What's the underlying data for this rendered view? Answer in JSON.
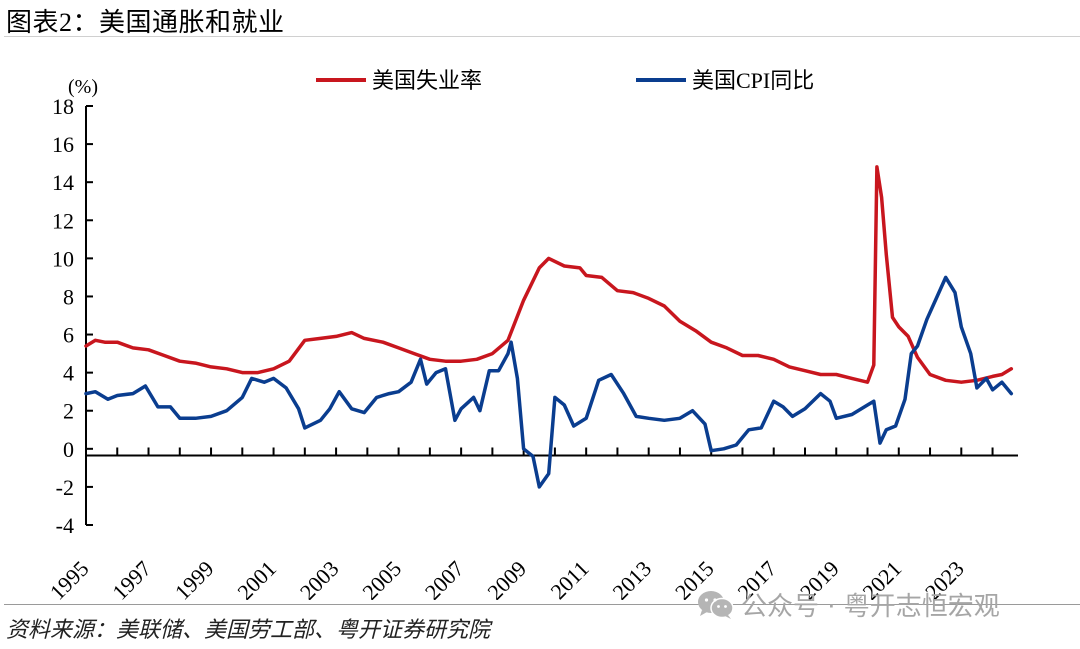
{
  "title": "图表2：美国通胀和就业",
  "source": "资料来源：美联储、美国劳工部、粤开证券研究院",
  "watermark": {
    "icon": "wechat-icon",
    "text": "公众号 · 粤开志恒宏观"
  },
  "colors": {
    "unemployment": "#c8161e",
    "cpi": "#0a3d8f",
    "axis": "#000000"
  },
  "chart_data": {
    "type": "line",
    "title": "美国通胀和就业",
    "ylabel": "(%)",
    "xlabel": "",
    "ylim": [
      -4,
      18
    ],
    "yticks": [
      18,
      16,
      14,
      12,
      10,
      8,
      6,
      4,
      2,
      0,
      -2,
      -4
    ],
    "xlim": [
      1995,
      2024.75
    ],
    "xticks": [
      "1995",
      "1997",
      "1999",
      "2001",
      "2003",
      "2005",
      "2007",
      "2009",
      "2011",
      "2013",
      "2015",
      "2017",
      "2019",
      "2021",
      "2023"
    ],
    "grid": false,
    "legend_position": "top",
    "series": [
      {
        "name": "美国失业率",
        "color": "#c8161e",
        "x": [
          1995.0,
          1995.3,
          1995.6,
          1996.0,
          1996.5,
          1997.0,
          1997.5,
          1998.0,
          1998.5,
          1999.0,
          1999.5,
          2000.0,
          2000.5,
          2001.0,
          2001.5,
          2002.0,
          2002.5,
          2003.0,
          2003.5,
          2003.9,
          2004.5,
          2005.0,
          2005.5,
          2006.0,
          2006.5,
          2007.0,
          2007.5,
          2008.0,
          2008.5,
          2009.0,
          2009.5,
          2009.8,
          2010.3,
          2010.8,
          2011.0,
          2011.5,
          2012.0,
          2012.5,
          2013.0,
          2013.5,
          2014.0,
          2014.5,
          2015.0,
          2015.5,
          2016.0,
          2016.5,
          2017.0,
          2017.5,
          2018.0,
          2018.5,
          2019.0,
          2019.5,
          2020.0,
          2020.2,
          2020.3,
          2020.45,
          2020.6,
          2020.8,
          2021.0,
          2021.3,
          2021.6,
          2022.0,
          2022.5,
          2023.0,
          2023.5,
          2024.0,
          2024.3,
          2024.6
        ],
        "values": [
          5.4,
          5.7,
          5.6,
          5.6,
          5.3,
          5.2,
          4.9,
          4.6,
          4.5,
          4.3,
          4.2,
          4.0,
          4.0,
          4.2,
          4.6,
          5.7,
          5.8,
          5.9,
          6.1,
          5.8,
          5.6,
          5.3,
          5.0,
          4.7,
          4.6,
          4.6,
          4.7,
          5.0,
          5.7,
          7.8,
          9.5,
          10.0,
          9.6,
          9.5,
          9.1,
          9.0,
          8.3,
          8.2,
          7.9,
          7.5,
          6.7,
          6.2,
          5.6,
          5.3,
          4.9,
          4.9,
          4.7,
          4.3,
          4.1,
          3.9,
          3.9,
          3.7,
          3.5,
          4.4,
          14.8,
          13.2,
          10.2,
          6.9,
          6.4,
          5.9,
          4.8,
          3.9,
          3.6,
          3.5,
          3.6,
          3.8,
          3.9,
          4.2
        ]
      },
      {
        "name": "美国CPI同比",
        "color": "#0a3d8f",
        "x": [
          1995.0,
          1995.3,
          1995.7,
          1996.0,
          1996.5,
          1996.9,
          1997.3,
          1997.7,
          1998.0,
          1998.5,
          1999.0,
          1999.5,
          2000.0,
          2000.3,
          2000.7,
          2001.0,
          2001.4,
          2001.8,
          2002.0,
          2002.5,
          2002.8,
          2003.1,
          2003.5,
          2003.9,
          2004.3,
          2004.7,
          2005.0,
          2005.4,
          2005.7,
          2005.9,
          2006.2,
          2006.5,
          2006.8,
          2007.0,
          2007.4,
          2007.6,
          2007.9,
          2008.2,
          2008.5,
          2008.6,
          2008.8,
          2009.0,
          2009.3,
          2009.5,
          2009.8,
          2010.0,
          2010.3,
          2010.6,
          2011.0,
          2011.4,
          2011.8,
          2012.2,
          2012.6,
          2013.0,
          2013.5,
          2014.0,
          2014.4,
          2014.8,
          2015.0,
          2015.4,
          2015.8,
          2016.2,
          2016.6,
          2017.0,
          2017.3,
          2017.6,
          2018.0,
          2018.5,
          2018.8,
          2019.0,
          2019.5,
          2020.0,
          2020.2,
          2020.4,
          2020.6,
          2020.9,
          2021.2,
          2021.4,
          2021.6,
          2021.9,
          2022.2,
          2022.5,
          2022.8,
          2023.0,
          2023.3,
          2023.5,
          2023.8,
          2024.0,
          2024.3,
          2024.6
        ],
        "values": [
          2.9,
          3.0,
          2.6,
          2.8,
          2.9,
          3.3,
          2.2,
          2.2,
          1.6,
          1.6,
          1.7,
          2.0,
          2.7,
          3.7,
          3.5,
          3.7,
          3.2,
          2.1,
          1.1,
          1.5,
          2.1,
          3.0,
          2.1,
          1.9,
          2.7,
          2.9,
          3.0,
          3.5,
          4.7,
          3.4,
          4.0,
          4.2,
          1.5,
          2.1,
          2.7,
          2.0,
          4.1,
          4.1,
          5.0,
          5.6,
          3.7,
          0.0,
          -0.4,
          -2.0,
          -1.3,
          2.7,
          2.3,
          1.2,
          1.6,
          3.6,
          3.9,
          2.9,
          1.7,
          1.6,
          1.5,
          1.6,
          2.0,
          1.3,
          -0.1,
          0.0,
          0.2,
          1.0,
          1.1,
          2.5,
          2.2,
          1.7,
          2.1,
          2.9,
          2.5,
          1.6,
          1.8,
          2.3,
          2.5,
          0.3,
          1.0,
          1.2,
          2.6,
          5.0,
          5.4,
          6.8,
          7.9,
          9.0,
          8.2,
          6.4,
          5.0,
          3.2,
          3.7,
          3.1,
          3.5,
          2.9
        ]
      }
    ]
  }
}
